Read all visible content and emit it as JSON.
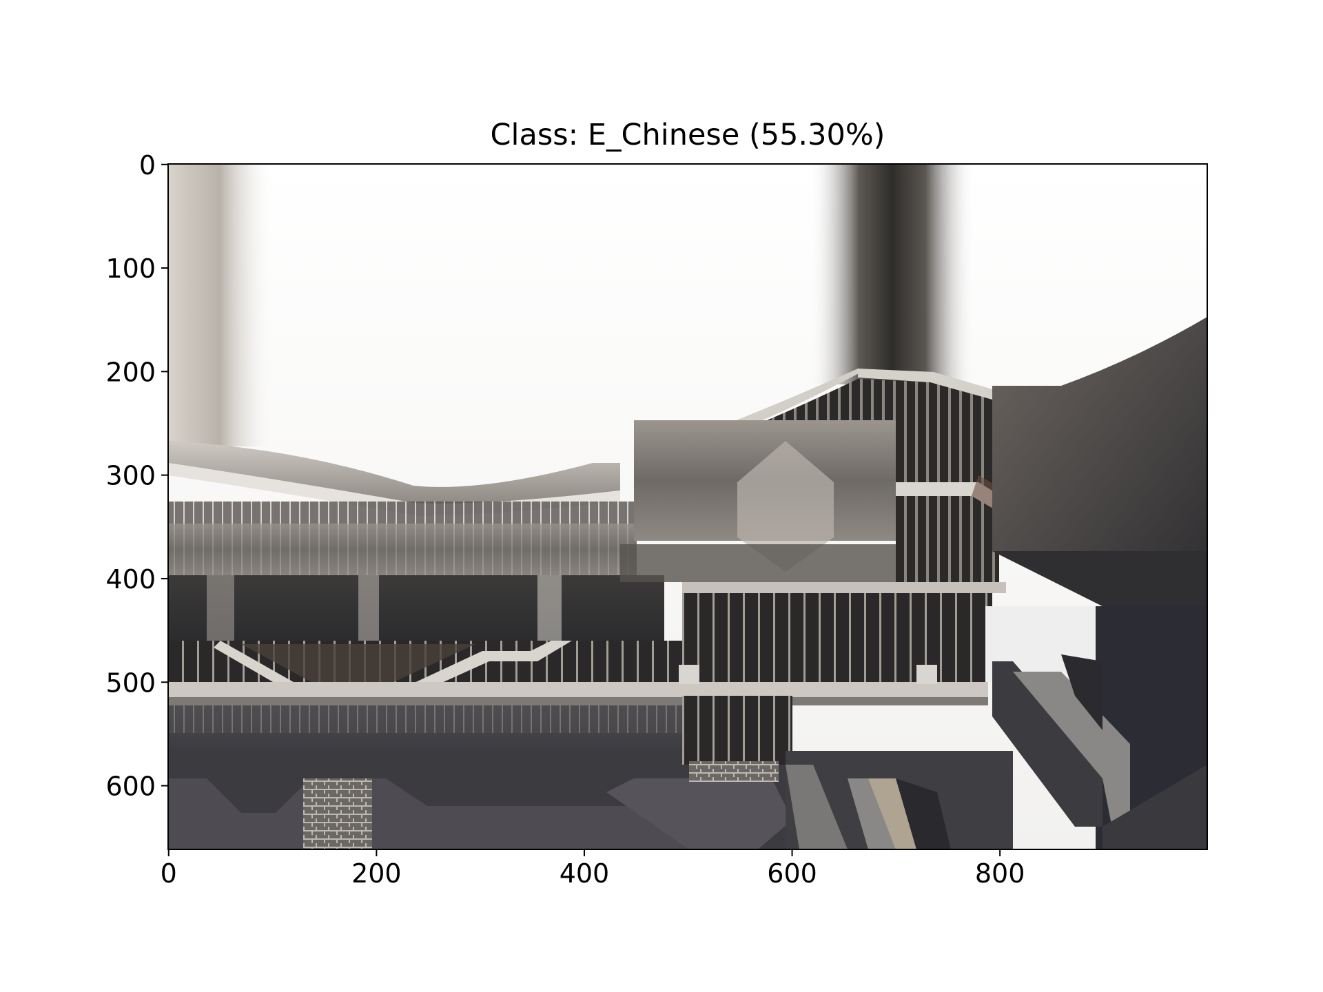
{
  "chart_data": {
    "type": "image",
    "title": "Class: E_Chinese (55.30%)",
    "predicted_class": "E_Chinese",
    "confidence_percent": 55.3,
    "image_width": 1000,
    "image_height": 662,
    "xlim": [
      -0.5,
      999.5
    ],
    "ylim": [
      661.5,
      -0.5
    ],
    "x_ticks": [
      0,
      200,
      400,
      600,
      800
    ],
    "y_ticks": [
      0,
      100,
      200,
      300,
      400,
      500,
      600
    ],
    "x_tick_labels": [
      "0",
      "200",
      "400",
      "600",
      "800"
    ],
    "y_tick_labels": [
      "0",
      "100",
      "200",
      "300",
      "400",
      "500",
      "600"
    ],
    "grid": false,
    "image_content": "photo of a modern building with curved sloping roofs, exterior staircases and glazed facades, heavily distorted by patch smearing"
  },
  "colors": {
    "axis": "#000000",
    "sky": "#fafafa",
    "roof": "#b9b4ad",
    "facade": "#3a3836",
    "shadow": "#26272b",
    "ground": "#5a5a5e",
    "concrete": "#8c8a87"
  }
}
